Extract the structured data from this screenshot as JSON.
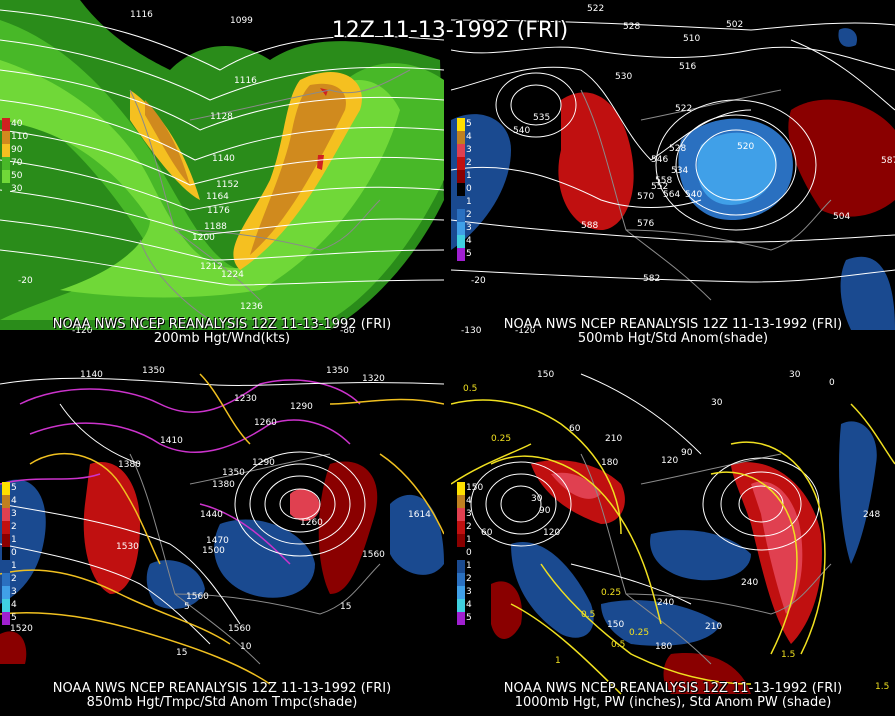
{
  "title": "12Z 11-13-1992 (FRI)",
  "panels": [
    {
      "id": "200mb",
      "caption_line1": "NOAA NWS NCEP REANALYSIS 12Z 11-13-1992 (FRI)",
      "caption_line2": "200mb Hgt/Wnd(kts)",
      "legend": [
        {
          "label": "40",
          "color": "#d02020"
        },
        {
          "label": "110",
          "color": "#d08a1e"
        },
        {
          "label": "90",
          "color": "#f5c020"
        },
        {
          "label": "70",
          "color": "#48b828"
        },
        {
          "label": "50",
          "color": "#70d838"
        },
        {
          "label": "30",
          "color": "#2a8c1a"
        }
      ],
      "contour_labels": [
        "1116",
        "1099",
        "1116",
        "1128",
        "1140",
        "1152",
        "1164",
        "1176",
        "1188",
        "1200",
        "1212",
        "1224",
        "1236",
        "-20",
        "-120",
        "-80"
      ]
    },
    {
      "id": "500mb",
      "caption_line1": "NOAA NWS NCEP REANALYSIS 12Z 11-13-1992 (FRI)",
      "caption_line2": "500mb Hgt/Std Anom(shade)",
      "legend": [
        {
          "label": "5",
          "color": "#ffe000"
        },
        {
          "label": "4",
          "color": "#c08020"
        },
        {
          "label": "3",
          "color": "#e04050"
        },
        {
          "label": "2",
          "color": "#c01010"
        },
        {
          "label": "1",
          "color": "#8a0000"
        },
        {
          "label": "0",
          "color": "#000000"
        },
        {
          "label": "1",
          "color": "#1a4a90"
        },
        {
          "label": "2",
          "color": "#2a70c0"
        },
        {
          "label": "3",
          "color": "#40a0e8"
        },
        {
          "label": "4",
          "color": "#40d0e0"
        },
        {
          "label": "5",
          "color": "#a020d0"
        }
      ],
      "contour_labels": [
        "522",
        "528",
        "510",
        "516",
        "502",
        "530",
        "540",
        "535",
        "522",
        "528",
        "534",
        "546",
        "540",
        "552",
        "558",
        "564",
        "570",
        "576",
        "582",
        "587",
        "588",
        "520",
        "504",
        "-20",
        "-130",
        "-120"
      ]
    },
    {
      "id": "850mb",
      "caption_line1": "NOAA NWS NCEP REANALYSIS 12Z 11-13-1992 (FRI)",
      "caption_line2": "850mb Hgt/Tmpc/Std Anom Tmpc(shade)",
      "legend": [
        {
          "label": "5",
          "color": "#ffe000"
        },
        {
          "label": "4",
          "color": "#c08020"
        },
        {
          "label": "3",
          "color": "#e04050"
        },
        {
          "label": "2",
          "color": "#c01010"
        },
        {
          "label": "1",
          "color": "#8a0000"
        },
        {
          "label": "0",
          "color": "#000000"
        },
        {
          "label": "1",
          "color": "#1a4a90"
        },
        {
          "label": "2",
          "color": "#2a70c0"
        },
        {
          "label": "3",
          "color": "#40a0e8"
        },
        {
          "label": "4",
          "color": "#40d0e0"
        },
        {
          "label": "5",
          "color": "#a020d0"
        }
      ],
      "contour_labels": [
        "1140",
        "1350",
        "1350",
        "1320",
        "1410",
        "1230",
        "1260",
        "1290",
        "1380",
        "1350",
        "1380",
        "1290",
        "1440",
        "1470",
        "1500",
        "1530",
        "1560",
        "1560",
        "1560",
        "1520",
        "1260",
        "1614",
        "5",
        "10",
        "15",
        "15"
      ]
    },
    {
      "id": "1000mb",
      "caption_line1": "NOAA NWS NCEP REANALYSIS 12Z 11-13-1992 (FRI)",
      "caption_line2": "1000mb Hgt, PW (inches), Std Anom PW (shade)",
      "legend": [
        {
          "label": "150",
          "color": "#ffe000"
        },
        {
          "label": "4",
          "color": "#c08020"
        },
        {
          "label": "3",
          "color": "#e04050"
        },
        {
          "label": "2",
          "color": "#c01010"
        },
        {
          "label": "1",
          "color": "#8a0000"
        },
        {
          "label": "0",
          "color": "#000000"
        },
        {
          "label": "1",
          "color": "#1a4a90"
        },
        {
          "label": "2",
          "color": "#2a70c0"
        },
        {
          "label": "3",
          "color": "#40a0e8"
        },
        {
          "label": "4",
          "color": "#40d0e0"
        },
        {
          "label": "5",
          "color": "#a020d0"
        }
      ],
      "contour_labels": [
        "0.5",
        "0.25",
        "150",
        "30",
        "0",
        "60",
        "30",
        "210",
        "180",
        "90",
        "120",
        "90",
        "30",
        "60",
        "120",
        "240",
        "210",
        "180",
        "150",
        "240",
        "0.25",
        "0.5",
        "0.25",
        "0.5",
        "1",
        "1.5",
        "1.5",
        "248"
      ]
    }
  ]
}
